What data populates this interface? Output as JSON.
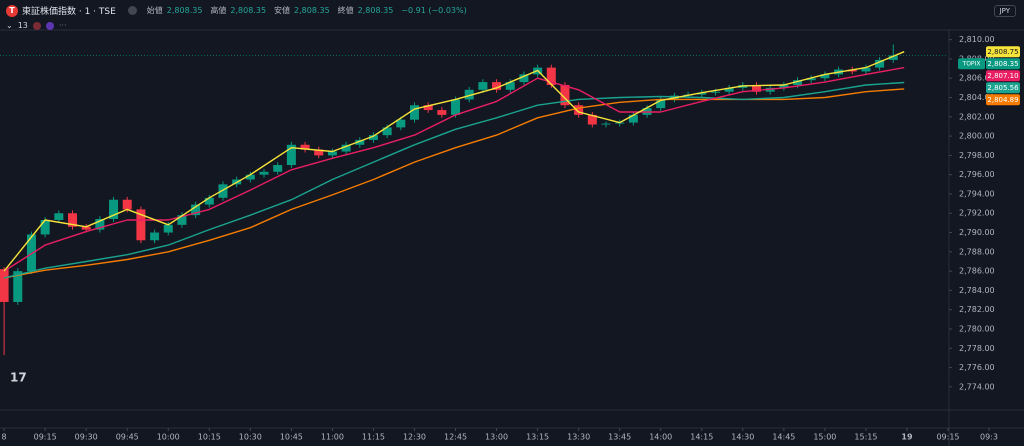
{
  "header": {
    "logo": "T",
    "symbol": "東証株価指数 · 1 · TSE",
    "open_label": "始値",
    "open_value": "2,808.35",
    "high_label": "高値",
    "high_value": "2,808.35",
    "low_label": "安値",
    "low_value": "2,808.35",
    "close_label": "終値",
    "close_value": "2,808.35",
    "change": "−0.91 (−0.03%)",
    "indicator_count": "13",
    "currency": "JPY"
  },
  "chart_data": {
    "type": "candlestick",
    "symbol_label": "TOPIX",
    "last_label": "2,808.35",
    "up_color": "#089981",
    "down_color": "#f23645",
    "x": [
      0,
      5,
      10,
      15,
      20,
      25,
      30,
      35,
      40,
      45,
      50,
      55,
      60,
      65,
      70,
      75,
      80,
      85,
      90,
      95,
      100,
      105,
      110,
      115,
      120,
      125,
      130,
      135,
      140,
      145,
      150,
      155,
      160,
      165,
      170,
      175,
      180,
      185,
      190,
      195,
      200,
      205,
      210,
      215,
      220,
      225,
      230,
      235,
      240,
      245,
      250,
      255,
      260,
      265,
      270,
      275,
      280,
      285,
      290,
      295,
      300,
      305,
      310,
      315,
      320,
      325
    ],
    "open": [
      2786.2,
      2782.8,
      2786.0,
      2789.8,
      2791.3,
      2792.0,
      2790.6,
      2790.3,
      2791.4,
      2793.4,
      2792.4,
      2789.2,
      2790.0,
      2790.8,
      2791.8,
      2792.9,
      2793.6,
      2795.0,
      2795.5,
      2796.0,
      2796.3,
      2797.0,
      2799.1,
      2798.6,
      2798.0,
      2798.4,
      2799.1,
      2799.6,
      2800.1,
      2800.9,
      2801.7,
      2803.2,
      2802.7,
      2802.2,
      2803.8,
      2804.8,
      2805.6,
      2804.8,
      2805.6,
      2806.4,
      2807.1,
      2805.3,
      2803.2,
      2802.2,
      2801.2,
      2801.3,
      2801.4,
      2802.2,
      2802.9,
      2803.8,
      2804.2,
      2804.3,
      2804.5,
      2804.6,
      2805.0,
      2805.3,
      2804.6,
      2805.0,
      2805.3,
      2805.8,
      2806.0,
      2806.4,
      2806.9,
      2806.7,
      2807.1,
      2807.9
    ],
    "high": [
      2786.4,
      2786.3,
      2790.1,
      2791.6,
      2792.3,
      2792.3,
      2790.9,
      2791.7,
      2793.7,
      2793.7,
      2792.7,
      2790.3,
      2791.1,
      2792.1,
      2793.2,
      2793.9,
      2795.3,
      2795.8,
      2796.3,
      2796.6,
      2797.3,
      2799.4,
      2799.4,
      2798.9,
      2798.7,
      2799.4,
      2799.9,
      2800.4,
      2801.2,
      2802.0,
      2803.5,
      2803.5,
      2803.0,
      2804.1,
      2805.1,
      2805.9,
      2805.9,
      2805.9,
      2806.7,
      2807.4,
      2807.4,
      2805.6,
      2803.5,
      2802.5,
      2801.5,
      2801.7,
      2802.5,
      2803.2,
      2804.1,
      2804.5,
      2804.6,
      2804.8,
      2804.9,
      2805.3,
      2805.6,
      2805.6,
      2805.3,
      2805.6,
      2806.1,
      2806.3,
      2806.7,
      2807.2,
      2807.2,
      2807.4,
      2808.2,
      2809.5
    ],
    "low": [
      2777.3,
      2782.5,
      2785.7,
      2789.5,
      2791.0,
      2790.3,
      2790.0,
      2790.0,
      2791.1,
      2792.1,
      2788.9,
      2788.9,
      2789.7,
      2790.5,
      2791.5,
      2792.6,
      2793.3,
      2794.7,
      2795.2,
      2795.7,
      2796.0,
      2796.7,
      2798.3,
      2797.7,
      2797.7,
      2798.1,
      2798.8,
      2799.3,
      2799.8,
      2800.6,
      2801.4,
      2802.4,
      2801.9,
      2801.9,
      2803.5,
      2804.5,
      2804.5,
      2804.5,
      2805.3,
      2806.1,
      2805.0,
      2802.9,
      2801.9,
      2800.9,
      2800.9,
      2801.0,
      2801.1,
      2801.9,
      2802.6,
      2803.5,
      2803.9,
      2804.0,
      2804.2,
      2804.3,
      2804.7,
      2804.3,
      2804.3,
      2804.7,
      2805.0,
      2805.5,
      2805.7,
      2806.1,
      2806.4,
      2806.4,
      2806.8,
      2807.6
    ],
    "close": [
      2782.8,
      2786.0,
      2789.8,
      2791.3,
      2792.0,
      2790.6,
      2790.3,
      2791.4,
      2793.4,
      2792.4,
      2789.2,
      2790.0,
      2790.8,
      2791.8,
      2792.9,
      2793.6,
      2795.0,
      2795.5,
      2796.0,
      2796.3,
      2797.0,
      2799.1,
      2798.6,
      2798.0,
      2798.4,
      2799.1,
      2799.6,
      2800.1,
      2800.9,
      2801.7,
      2803.2,
      2802.7,
      2802.2,
      2803.8,
      2804.8,
      2805.6,
      2804.8,
      2805.6,
      2806.4,
      2807.1,
      2805.3,
      2803.2,
      2802.2,
      2801.2,
      2801.3,
      2801.4,
      2802.2,
      2802.9,
      2803.8,
      2804.2,
      2804.3,
      2804.5,
      2804.6,
      2805.0,
      2805.3,
      2804.6,
      2805.0,
      2805.3,
      2805.8,
      2806.0,
      2806.4,
      2806.9,
      2806.7,
      2807.1,
      2807.9,
      2808.35
    ],
    "lines": [
      {
        "color": "#f7e43a",
        "last_label": "2,808.75",
        "x": [
          0,
          15,
          30,
          45,
          60,
          75,
          90,
          105,
          120,
          135,
          150,
          165,
          180,
          195,
          210,
          225,
          240,
          255,
          270,
          285,
          300,
          315,
          329
        ],
        "values": [
          2786.0,
          2791.3,
          2790.6,
          2792.4,
          2790.8,
          2793.6,
          2796.0,
          2798.8,
          2798.4,
          2800.0,
          2802.8,
          2803.8,
          2805.0,
          2806.8,
          2802.5,
          2801.4,
          2803.7,
          2804.5,
          2805.2,
          2805.3,
          2806.4,
          2807.1,
          2808.75
        ]
      },
      {
        "color": "#e91e63",
        "last_label": "2,807.10",
        "x": [
          0,
          15,
          30,
          45,
          60,
          75,
          90,
          105,
          120,
          135,
          150,
          165,
          180,
          195,
          210,
          225,
          240,
          255,
          270,
          285,
          300,
          315,
          329
        ],
        "values": [
          2786.0,
          2788.7,
          2790.1,
          2791.3,
          2791.3,
          2792.4,
          2794.4,
          2796.5,
          2797.7,
          2798.8,
          2800.1,
          2802.2,
          2803.6,
          2806.0,
          2804.8,
          2802.5,
          2802.5,
          2803.6,
          2804.6,
          2805.0,
          2805.6,
          2806.4,
          2807.1
        ]
      },
      {
        "color": "#1aa38f",
        "last_label": "2,805.56",
        "x": [
          0,
          15,
          30,
          45,
          60,
          75,
          90,
          105,
          120,
          135,
          150,
          165,
          180,
          195,
          210,
          225,
          240,
          255,
          270,
          285,
          300,
          315,
          329
        ],
        "values": [
          2785.3,
          2786.3,
          2787.0,
          2787.7,
          2788.7,
          2790.3,
          2791.8,
          2793.4,
          2795.5,
          2797.3,
          2799.1,
          2800.7,
          2801.9,
          2803.2,
          2803.8,
          2804.0,
          2804.1,
          2804.0,
          2803.8,
          2804.0,
          2804.6,
          2805.3,
          2805.56
        ]
      },
      {
        "color": "#f57c00",
        "last_label": "2,804.89",
        "x": [
          0,
          15,
          30,
          45,
          60,
          75,
          90,
          105,
          120,
          135,
          150,
          165,
          180,
          195,
          210,
          225,
          240,
          255,
          270,
          285,
          300,
          315,
          329
        ],
        "values": [
          2785.3,
          2786.1,
          2786.6,
          2787.2,
          2788.0,
          2789.2,
          2790.5,
          2792.4,
          2793.9,
          2795.5,
          2797.3,
          2798.8,
          2800.1,
          2801.9,
          2802.9,
          2803.5,
          2803.8,
          2803.8,
          2803.8,
          2803.8,
          2804.0,
          2804.6,
          2804.89
        ]
      }
    ],
    "xlim": [
      -1.5,
      345
    ],
    "xticks": [
      {
        "value": 0,
        "label": "8"
      },
      {
        "value": 15,
        "label": "09:15"
      },
      {
        "value": 30,
        "label": "09:30"
      },
      {
        "value": 45,
        "label": "09:45"
      },
      {
        "value": 60,
        "label": "10:00"
      },
      {
        "value": 75,
        "label": "10:15"
      },
      {
        "value": 90,
        "label": "10:30"
      },
      {
        "value": 105,
        "label": "10:45"
      },
      {
        "value": 120,
        "label": "11:00"
      },
      {
        "value": 135,
        "label": "11:15"
      },
      {
        "value": 150,
        "label": "12:30"
      },
      {
        "value": 165,
        "label": "12:45"
      },
      {
        "value": 180,
        "label": "13:00"
      },
      {
        "value": 195,
        "label": "13:15"
      },
      {
        "value": 210,
        "label": "13:30"
      },
      {
        "value": 225,
        "label": "13:45"
      },
      {
        "value": 240,
        "label": "14:00"
      },
      {
        "value": 255,
        "label": "14:15"
      },
      {
        "value": 270,
        "label": "14:30"
      },
      {
        "value": 285,
        "label": "14:45"
      },
      {
        "value": 300,
        "label": "15:00"
      },
      {
        "value": 315,
        "label": "15:15"
      },
      {
        "value": 330,
        "label": "19"
      },
      {
        "value": 345,
        "label": "09:15"
      },
      {
        "value": 360,
        "label": "09:3"
      }
    ],
    "ylim": [
      2771.6,
      2811.0
    ],
    "yticks": [
      {
        "value": 2774,
        "label": "2,774.00"
      },
      {
        "value": 2776,
        "label": "2,776.00"
      },
      {
        "value": 2778,
        "label": "2,778.00"
      },
      {
        "value": 2780,
        "label": "2,780.00"
      },
      {
        "value": 2782,
        "label": "2,782.00"
      },
      {
        "value": 2784,
        "label": "2,784.00"
      },
      {
        "value": 2786,
        "label": "2,786.00"
      },
      {
        "value": 2788,
        "label": "2,788.00"
      },
      {
        "value": 2790,
        "label": "2,790.00"
      },
      {
        "value": 2792,
        "label": "2,792.00"
      },
      {
        "value": 2794,
        "label": "2,794.00"
      },
      {
        "value": 2796,
        "label": "2,796.00"
      },
      {
        "value": 2798,
        "label": "2,798.00"
      },
      {
        "value": 2800,
        "label": "2,800.00"
      },
      {
        "value": 2802,
        "label": "2,802.00"
      },
      {
        "value": 2804,
        "label": "2,804.00"
      },
      {
        "value": 2806,
        "label": "2,806.00"
      },
      {
        "value": 2808,
        "label": "2,808.00"
      },
      {
        "value": 2810,
        "label": "2,810.00"
      }
    ]
  }
}
